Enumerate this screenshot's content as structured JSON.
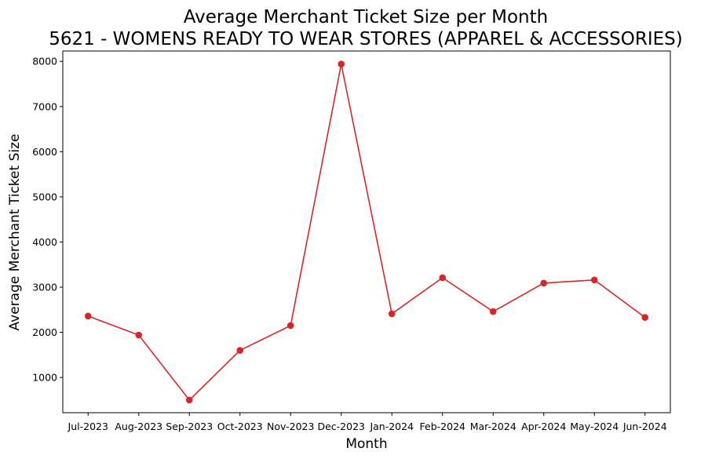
{
  "chart_data": {
    "type": "line",
    "title": "Average Merchant Ticket Size per Month",
    "subtitle": "5621 - WOMENS READY TO WEAR STORES (APPAREL & ACCESSORIES)",
    "xlabel": "Month",
    "ylabel": "Average Merchant Ticket Size",
    "categories": [
      "Jul-2023",
      "Aug-2023",
      "Sep-2023",
      "Oct-2023",
      "Nov-2023",
      "Dec-2023",
      "Jan-2024",
      "Feb-2024",
      "Mar-2024",
      "Apr-2024",
      "May-2024",
      "Jun-2024"
    ],
    "series": [
      {
        "values": [
          2360,
          1940,
          500,
          1600,
          2150,
          7940,
          2410,
          3210,
          2460,
          3090,
          3160,
          2330
        ],
        "color": "#d62728",
        "marker": "circle"
      }
    ],
    "y_ticks": [
      "1000",
      "2000",
      "3000",
      "4000",
      "5000",
      "6000",
      "7000",
      "8000"
    ],
    "ylim": [
      220,
      8230
    ],
    "grid": false
  }
}
